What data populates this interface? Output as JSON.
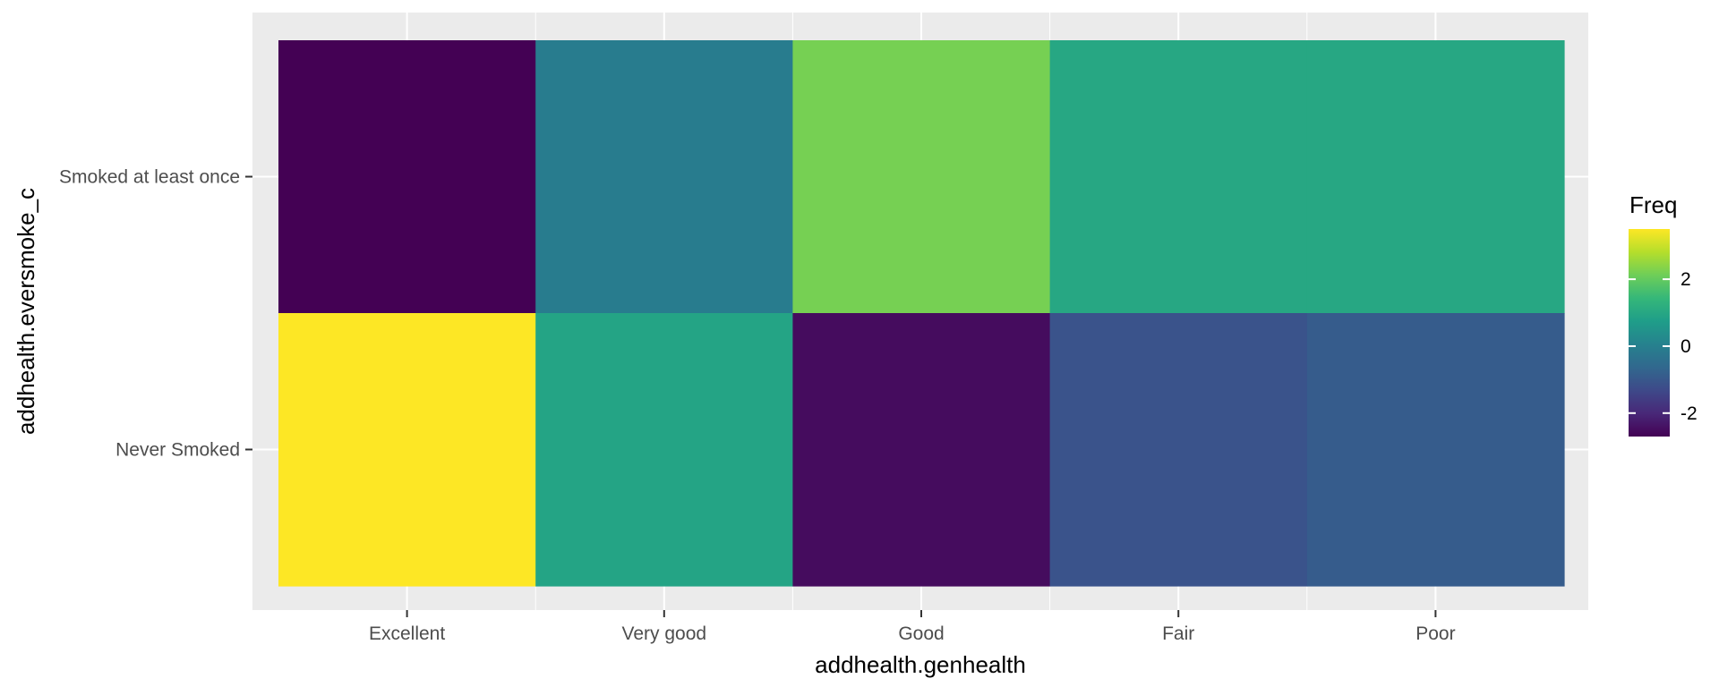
{
  "chart_data": {
    "type": "heatmap",
    "xlabel": "addhealth.genhealth",
    "ylabel": "addhealth.eversmoke_c",
    "x_categories": [
      "Excellent",
      "Very good",
      "Good",
      "Fair",
      "Poor"
    ],
    "y_categories": [
      "Smoked at least once",
      "Never Smoked"
    ],
    "values": [
      [
        -2.7,
        -0.1,
        2.2,
        1.0,
        1.0
      ],
      [
        3.5,
        0.9,
        -2.5,
        -1.1,
        -0.9
      ]
    ],
    "legend": {
      "title": "Freq",
      "ticks": [
        2,
        0,
        -2
      ],
      "tick_labels": [
        "2",
        "0",
        "-2"
      ],
      "range": [
        -2.7,
        3.5
      ],
      "placement": "right"
    },
    "colormap": "viridis",
    "grid": true,
    "panel_background": "#ebebeb",
    "gridline_color": "#ffffff"
  }
}
